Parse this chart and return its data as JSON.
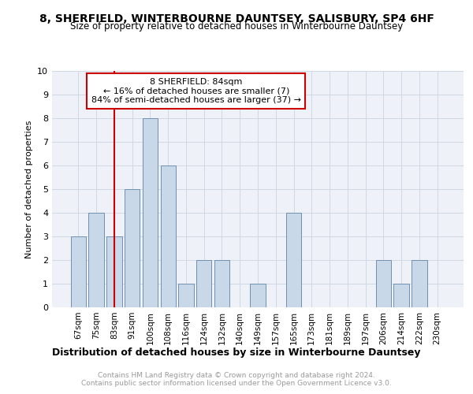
{
  "title1": "8, SHERFIELD, WINTERBOURNE DAUNTSEY, SALISBURY, SP4 6HF",
  "title2": "Size of property relative to detached houses in Winterbourne Dauntsey",
  "xlabel": "Distribution of detached houses by size in Winterbourne Dauntsey",
  "ylabel": "Number of detached properties",
  "footer1": "Contains HM Land Registry data © Crown copyright and database right 2024.",
  "footer2": "Contains public sector information licensed under the Open Government Licence v3.0.",
  "bar_labels": [
    "67sqm",
    "75sqm",
    "83sqm",
    "91sqm",
    "100sqm",
    "108sqm",
    "116sqm",
    "124sqm",
    "132sqm",
    "140sqm",
    "149sqm",
    "157sqm",
    "165sqm",
    "173sqm",
    "181sqm",
    "189sqm",
    "197sqm",
    "206sqm",
    "214sqm",
    "222sqm",
    "230sqm"
  ],
  "bar_values": [
    3,
    4,
    3,
    5,
    8,
    6,
    1,
    2,
    2,
    0,
    1,
    0,
    4,
    0,
    0,
    0,
    0,
    2,
    1,
    2,
    0
  ],
  "bar_color": "#c8d8e8",
  "bar_edge_color": "#7090b0",
  "vline_color": "#cc0000",
  "annotation_title": "8 SHERFIELD: 84sqm",
  "annotation_line1": "← 16% of detached houses are smaller (7)",
  "annotation_line2": "84% of semi-detached houses are larger (37) →",
  "annotation_box_color": "#cc0000",
  "ylim": [
    0,
    10
  ],
  "yticks": [
    0,
    1,
    2,
    3,
    4,
    5,
    6,
    7,
    8,
    9,
    10
  ],
  "grid_color": "#d0d8e4",
  "bg_color": "#eef2f8",
  "title1_fontsize": 10,
  "title2_fontsize": 8.5,
  "ylabel_fontsize": 8,
  "xlabel_fontsize": 9,
  "tick_fontsize": 7.5,
  "footer_fontsize": 6.5
}
